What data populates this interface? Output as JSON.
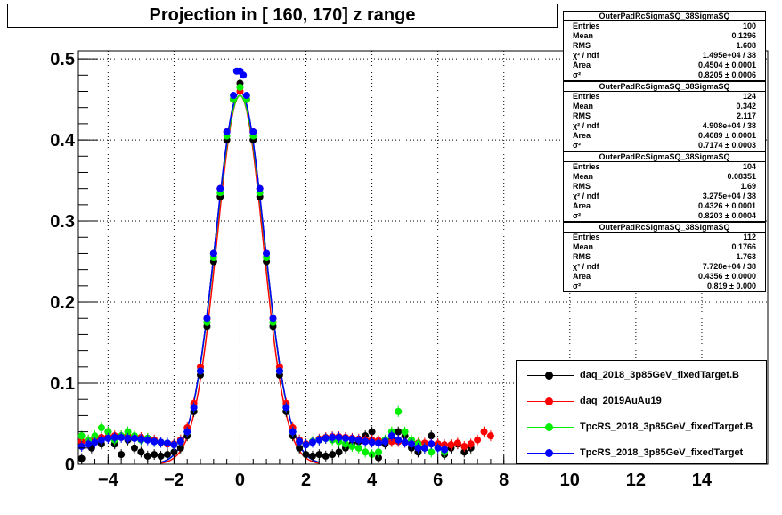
{
  "chart_data": {
    "type": "scatter",
    "title": "Projection in [ 160, 170] z range",
    "xlim": [
      -4.9,
      16
    ],
    "ylim": [
      0,
      0.51
    ],
    "x_ticks": [
      "−4",
      "−2",
      "0",
      "2",
      "4",
      "6",
      "8",
      "10",
      "12",
      "14"
    ],
    "x_tick_values": [
      -4,
      -2,
      0,
      2,
      4,
      6,
      8,
      10,
      12,
      14
    ],
    "y_ticks": [
      "0",
      "0.1",
      "0.2",
      "0.3",
      "0.4",
      "0.5"
    ],
    "y_tick_values": [
      0,
      0.1,
      0.2,
      0.3,
      0.4,
      0.5
    ],
    "grid": true,
    "legend_position": "bottom-right",
    "series": [
      {
        "name": "daq_2018_3p85GeV_fixedTarget.B",
        "color": "#000000",
        "fit_peak": 0.46,
        "fit_sigma": 0.74,
        "points": [
          [
            -4.8,
            0.007
          ],
          [
            -4.5,
            0.02
          ],
          [
            -4.2,
            0.025
          ],
          [
            -4.0,
            0.04
          ],
          [
            -3.8,
            0.025
          ],
          [
            -3.6,
            0.012
          ],
          [
            -3.4,
            0.03
          ],
          [
            -3.2,
            0.02
          ],
          [
            -3.0,
            0.015
          ],
          [
            -2.8,
            0.01
          ],
          [
            -2.6,
            0.012
          ],
          [
            -2.4,
            0.01
          ],
          [
            -2.2,
            0.012
          ],
          [
            -2.0,
            0.015
          ],
          [
            -1.8,
            0.02
          ],
          [
            -1.6,
            0.035
          ],
          [
            -1.4,
            0.065
          ],
          [
            -1.2,
            0.11
          ],
          [
            -1.0,
            0.17
          ],
          [
            -0.8,
            0.25
          ],
          [
            -0.6,
            0.33
          ],
          [
            -0.4,
            0.4
          ],
          [
            -0.2,
            0.45
          ],
          [
            0.0,
            0.47
          ],
          [
            0.2,
            0.45
          ],
          [
            0.4,
            0.4
          ],
          [
            0.6,
            0.33
          ],
          [
            0.8,
            0.25
          ],
          [
            1.0,
            0.17
          ],
          [
            1.2,
            0.11
          ],
          [
            1.4,
            0.065
          ],
          [
            1.6,
            0.035
          ],
          [
            1.8,
            0.02
          ],
          [
            2.0,
            0.012
          ],
          [
            2.2,
            0.01
          ],
          [
            2.4,
            0.012
          ],
          [
            2.6,
            0.01
          ],
          [
            2.8,
            0.012
          ],
          [
            3.0,
            0.015
          ],
          [
            3.2,
            0.02
          ],
          [
            3.4,
            0.025
          ],
          [
            3.6,
            0.028
          ],
          [
            3.8,
            0.035
          ],
          [
            4.0,
            0.04
          ],
          [
            4.2,
            0.008
          ],
          [
            4.4,
            0.025
          ],
          [
            4.6,
            0.03
          ],
          [
            4.8,
            0.04
          ],
          [
            5.0,
            0.035
          ],
          [
            5.2,
            0.02
          ],
          [
            5.4,
            0.015
          ],
          [
            5.6,
            0.02
          ],
          [
            5.8,
            0.035
          ],
          [
            6.0,
            0.025
          ],
          [
            6.2,
            0.012
          ],
          [
            6.4,
            0.02
          ],
          [
            6.6,
            0.025
          ],
          [
            6.8,
            0.015
          ],
          [
            7.0,
            0.02
          ]
        ]
      },
      {
        "name": "daq_2019AuAu19",
        "color": "#ff0000",
        "fit_peak": 0.455,
        "fit_sigma": 0.7,
        "points": [
          [
            -4.8,
            0.028
          ],
          [
            -4.6,
            0.03
          ],
          [
            -4.4,
            0.032
          ],
          [
            -4.2,
            0.033
          ],
          [
            -4.0,
            0.034
          ],
          [
            -3.8,
            0.035
          ],
          [
            -3.6,
            0.035
          ],
          [
            -3.4,
            0.035
          ],
          [
            -3.2,
            0.034
          ],
          [
            -3.0,
            0.033
          ],
          [
            -2.8,
            0.032
          ],
          [
            -2.6,
            0.03
          ],
          [
            -2.4,
            0.027
          ],
          [
            -2.2,
            0.025
          ],
          [
            -2.0,
            0.025
          ],
          [
            -1.8,
            0.03
          ],
          [
            -1.6,
            0.045
          ],
          [
            -1.4,
            0.075
          ],
          [
            -1.2,
            0.12
          ],
          [
            -1.0,
            0.18
          ],
          [
            -0.8,
            0.26
          ],
          [
            -0.6,
            0.34
          ],
          [
            -0.4,
            0.41
          ],
          [
            -0.2,
            0.45
          ],
          [
            0.0,
            0.46
          ],
          [
            0.2,
            0.45
          ],
          [
            0.4,
            0.41
          ],
          [
            0.6,
            0.34
          ],
          [
            0.8,
            0.26
          ],
          [
            1.0,
            0.18
          ],
          [
            1.2,
            0.12
          ],
          [
            1.4,
            0.075
          ],
          [
            1.6,
            0.045
          ],
          [
            1.8,
            0.03
          ],
          [
            2.0,
            0.025
          ],
          [
            2.2,
            0.028
          ],
          [
            2.4,
            0.031
          ],
          [
            2.6,
            0.033
          ],
          [
            2.8,
            0.034
          ],
          [
            3.0,
            0.034
          ],
          [
            3.2,
            0.033
          ],
          [
            3.4,
            0.032
          ],
          [
            3.6,
            0.031
          ],
          [
            3.8,
            0.03
          ],
          [
            4.0,
            0.03
          ],
          [
            4.2,
            0.029
          ],
          [
            4.4,
            0.029
          ],
          [
            4.6,
            0.028
          ],
          [
            4.8,
            0.028
          ],
          [
            5.0,
            0.027
          ],
          [
            5.2,
            0.027
          ],
          [
            5.4,
            0.026
          ],
          [
            5.6,
            0.026
          ],
          [
            5.8,
            0.025
          ],
          [
            6.0,
            0.025
          ],
          [
            6.2,
            0.024
          ],
          [
            6.4,
            0.024
          ],
          [
            6.6,
            0.026
          ],
          [
            6.8,
            0.022
          ],
          [
            7.0,
            0.025
          ],
          [
            7.2,
            0.03
          ],
          [
            7.4,
            0.04
          ],
          [
            7.6,
            0.035
          ]
        ]
      },
      {
        "name": "TpcRS_2018_3p85GeV_fixedTarget.B",
        "color": "#00ee00",
        "fit_peak": 0.455,
        "fit_sigma": 0.74,
        "points": [
          [
            -4.8,
            0.035
          ],
          [
            -4.6,
            0.03
          ],
          [
            -4.4,
            0.035
          ],
          [
            -4.2,
            0.045
          ],
          [
            -4.0,
            0.04
          ],
          [
            -3.8,
            0.03
          ],
          [
            -3.6,
            0.035
          ],
          [
            -3.4,
            0.04
          ],
          [
            -3.2,
            0.035
          ],
          [
            -3.0,
            0.03
          ],
          [
            -2.8,
            0.032
          ],
          [
            -2.6,
            0.028
          ],
          [
            -2.4,
            0.027
          ],
          [
            -2.2,
            0.026
          ],
          [
            -2.0,
            0.024
          ],
          [
            -1.8,
            0.028
          ],
          [
            -1.6,
            0.04
          ],
          [
            -1.4,
            0.07
          ],
          [
            -1.2,
            0.115
          ],
          [
            -1.0,
            0.175
          ],
          [
            -0.8,
            0.255
          ],
          [
            -0.6,
            0.335
          ],
          [
            -0.4,
            0.405
          ],
          [
            -0.2,
            0.45
          ],
          [
            0.0,
            0.465
          ],
          [
            0.2,
            0.45
          ],
          [
            0.4,
            0.405
          ],
          [
            0.6,
            0.335
          ],
          [
            0.8,
            0.255
          ],
          [
            1.0,
            0.175
          ],
          [
            1.2,
            0.115
          ],
          [
            1.4,
            0.07
          ],
          [
            1.6,
            0.04
          ],
          [
            1.8,
            0.028
          ],
          [
            2.0,
            0.024
          ],
          [
            2.2,
            0.028
          ],
          [
            2.4,
            0.03
          ],
          [
            2.6,
            0.032
          ],
          [
            2.8,
            0.03
          ],
          [
            3.0,
            0.028
          ],
          [
            3.2,
            0.025
          ],
          [
            3.4,
            0.022
          ],
          [
            3.6,
            0.02
          ],
          [
            3.8,
            0.015
          ],
          [
            4.0,
            0.012
          ],
          [
            4.2,
            0.015
          ],
          [
            4.4,
            0.03
          ],
          [
            4.6,
            0.04
          ],
          [
            4.8,
            0.065
          ],
          [
            5.0,
            0.04
          ],
          [
            5.2,
            0.03
          ],
          [
            5.4,
            0.025
          ],
          [
            5.6,
            0.02
          ],
          [
            5.8,
            0.015
          ],
          [
            6.0,
            0.02
          ],
          [
            6.2,
            0.015
          ]
        ]
      },
      {
        "name": "TpcRS_2018_3p85GeV_fixedTarget",
        "color": "#0000ff",
        "fit_peak": 0.46,
        "fit_sigma": 0.74,
        "points": [
          [
            -4.8,
            0.022
          ],
          [
            -4.6,
            0.025
          ],
          [
            -4.4,
            0.027
          ],
          [
            -4.2,
            0.03
          ],
          [
            -4.0,
            0.032
          ],
          [
            -3.8,
            0.033
          ],
          [
            -3.6,
            0.033
          ],
          [
            -3.4,
            0.032
          ],
          [
            -3.2,
            0.032
          ],
          [
            -3.0,
            0.031
          ],
          [
            -2.8,
            0.03
          ],
          [
            -2.6,
            0.028
          ],
          [
            -2.4,
            0.027
          ],
          [
            -2.2,
            0.026
          ],
          [
            -2.0,
            0.024
          ],
          [
            -1.8,
            0.028
          ],
          [
            -1.6,
            0.04
          ],
          [
            -1.4,
            0.07
          ],
          [
            -1.2,
            0.115
          ],
          [
            -1.0,
            0.18
          ],
          [
            -0.8,
            0.26
          ],
          [
            -0.6,
            0.34
          ],
          [
            -0.4,
            0.41
          ],
          [
            -0.2,
            0.455
          ],
          [
            -0.1,
            0.485
          ],
          [
            0.0,
            0.485
          ],
          [
            0.1,
            0.48
          ],
          [
            0.2,
            0.455
          ],
          [
            0.4,
            0.41
          ],
          [
            0.6,
            0.34
          ],
          [
            0.8,
            0.26
          ],
          [
            1.0,
            0.18
          ],
          [
            1.2,
            0.115
          ],
          [
            1.4,
            0.07
          ],
          [
            1.6,
            0.04
          ],
          [
            1.8,
            0.028
          ],
          [
            2.0,
            0.024
          ],
          [
            2.2,
            0.027
          ],
          [
            2.4,
            0.03
          ],
          [
            2.6,
            0.032
          ],
          [
            2.8,
            0.033
          ],
          [
            3.0,
            0.033
          ],
          [
            3.2,
            0.032
          ],
          [
            3.4,
            0.031
          ],
          [
            3.6,
            0.03
          ],
          [
            3.8,
            0.028
          ],
          [
            4.0,
            0.027
          ],
          [
            4.2,
            0.026
          ],
          [
            4.4,
            0.028
          ],
          [
            4.6,
            0.035
          ],
          [
            4.8,
            0.03
          ],
          [
            5.0,
            0.027
          ],
          [
            5.2,
            0.025
          ],
          [
            5.4,
            0.02
          ],
          [
            5.6,
            0.02
          ],
          [
            5.8,
            0.025
          ],
          [
            6.0,
            0.02
          ],
          [
            6.2,
            0.018
          ]
        ]
      }
    ],
    "stats_boxes": [
      {
        "name": "OuterPadRcSigmaSQ_38SigmaSQ",
        "rows": [
          [
            "Entries",
            "100"
          ],
          [
            "Mean",
            "0.1296"
          ],
          [
            "RMS",
            "1.608"
          ],
          [
            "χ² / ndf",
            "1.495e+04 / 38"
          ],
          [
            "Area",
            "0.4504 ± 0.0001"
          ],
          [
            "σ²",
            "0.8205 ± 0.0006"
          ]
        ]
      },
      {
        "name": "OuterPadRcSigmaSQ_38SigmaSQ",
        "rows": [
          [
            "Entries",
            "124"
          ],
          [
            "Mean",
            "0.342"
          ],
          [
            "RMS",
            "2.117"
          ],
          [
            "χ² / ndf",
            "4.908e+04 / 38"
          ],
          [
            "Area",
            "0.4089 ± 0.0001"
          ],
          [
            "σ²",
            "0.7174 ± 0.0003"
          ]
        ]
      },
      {
        "name": "OuterPadRcSigmaSQ_38SigmaSQ",
        "rows": [
          [
            "Entries",
            "104"
          ],
          [
            "Mean",
            "0.08351"
          ],
          [
            "RMS",
            "1.69"
          ],
          [
            "χ² / ndf",
            "3.275e+04 / 38"
          ],
          [
            "Area",
            "0.4326 ± 0.0001"
          ],
          [
            "σ²",
            "0.8203 ± 0.0004"
          ]
        ]
      },
      {
        "name": "OuterPadRcSigmaSQ_38SigmaSQ",
        "rows": [
          [
            "Entries",
            "112"
          ],
          [
            "Mean",
            "0.1766"
          ],
          [
            "RMS",
            "1.763"
          ],
          [
            "χ² / ndf",
            "7.728e+04 / 38"
          ],
          [
            "Area",
            "0.4356 ± 0.0000"
          ],
          [
            "σ²",
            "0.819 ± 0.000"
          ]
        ]
      }
    ]
  }
}
